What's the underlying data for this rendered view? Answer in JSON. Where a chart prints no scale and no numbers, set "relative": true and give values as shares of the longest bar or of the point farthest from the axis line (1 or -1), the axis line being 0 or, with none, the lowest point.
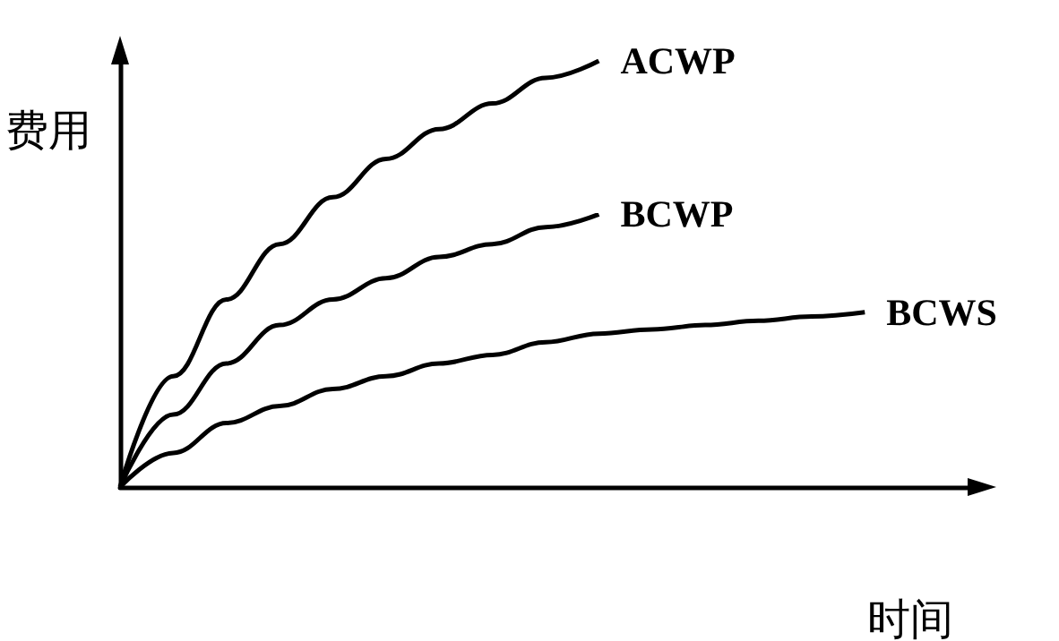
{
  "chart_data": {
    "type": "line",
    "relative": true,
    "xlabel": "时间",
    "ylabel": "费用",
    "categories": [
      null,
      null,
      null,
      null,
      null,
      null,
      null,
      null,
      null,
      null,
      null,
      null,
      null,
      null,
      null,
      null,
      null
    ],
    "series": [
      {
        "name": "ACWP",
        "color": "#000000",
        "values": [
          0,
          0.26,
          0.44,
          0.57,
          0.68,
          0.77,
          0.84,
          0.9,
          0.96,
          1,
          null,
          null,
          null,
          null,
          null,
          null,
          null
        ]
      },
      {
        "name": "BCWP",
        "color": "#000000",
        "values": [
          0,
          0.17,
          0.29,
          0.38,
          0.44,
          0.49,
          0.54,
          0.57,
          0.61,
          0.64,
          null,
          null,
          null,
          null,
          null,
          null,
          null
        ]
      },
      {
        "name": "BCWS",
        "color": "#000000",
        "values": [
          0,
          0.08,
          0.15,
          0.19,
          0.23,
          0.26,
          0.29,
          0.31,
          0.34,
          0.36,
          0.37,
          0.38,
          0.39,
          0.4,
          0.41,
          null,
          null
        ]
      }
    ],
    "marker": "none",
    "line_style": "solid"
  }
}
